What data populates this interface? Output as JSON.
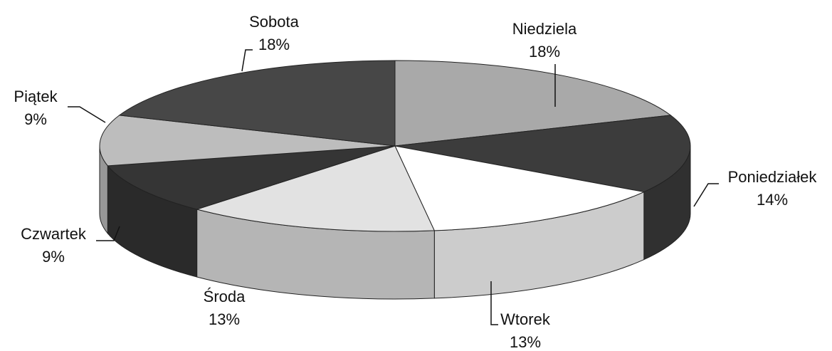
{
  "chart_data": {
    "type": "pie3d",
    "categories": [
      "Niedziela",
      "Poniedziałek",
      "Wtorek",
      "Środa",
      "Czwartek",
      "Piątek",
      "Sobota"
    ],
    "values": [
      18,
      14,
      13,
      13,
      9,
      9,
      18
    ],
    "value_labels": [
      "18%",
      "14%",
      "13%",
      "13%",
      "9%",
      "9%",
      "18%"
    ],
    "colors": [
      "#a9a9a9",
      "#3c3c3c",
      "#ffffff",
      "#e2e2e2",
      "#353535",
      "#bdbdbd",
      "#474747"
    ]
  }
}
